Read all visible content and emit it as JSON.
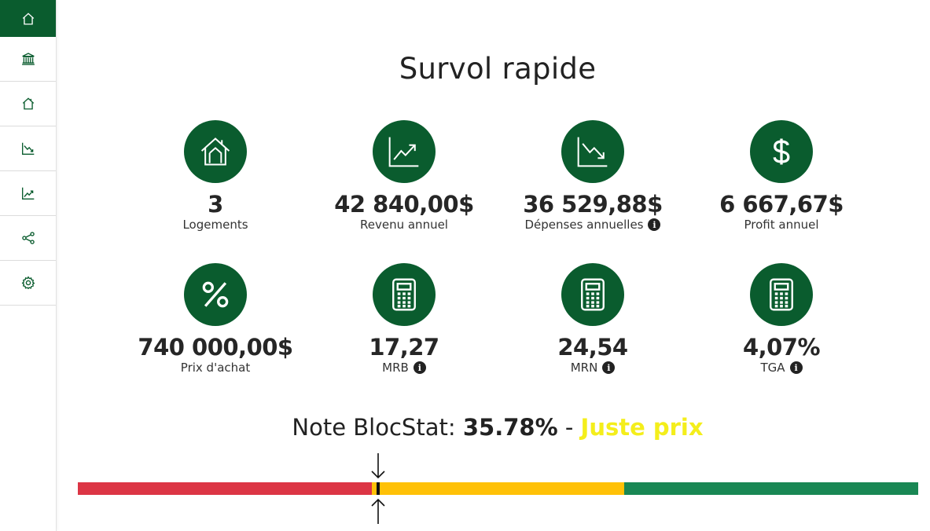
{
  "sidebar": {
    "items": [
      {
        "name": "home",
        "icon": "house-icon",
        "active": true
      },
      {
        "name": "bank",
        "icon": "bank-icon",
        "active": false
      },
      {
        "name": "properties",
        "icon": "house-outline-icon",
        "active": false
      },
      {
        "name": "expenses",
        "icon": "graph-down-icon",
        "active": false
      },
      {
        "name": "revenue",
        "icon": "graph-up-icon",
        "active": false
      },
      {
        "name": "share",
        "icon": "share-icon",
        "active": false
      },
      {
        "name": "settings",
        "icon": "gear-icon",
        "active": false
      }
    ]
  },
  "page": {
    "title": "Survol rapide"
  },
  "stats": [
    {
      "value": "3",
      "label": "Logements",
      "icon": "house-icon",
      "info": false
    },
    {
      "value": "42 840,00$",
      "label": "Revenu annuel",
      "icon": "graph-up-icon",
      "info": false
    },
    {
      "value": "36 529,88$",
      "label": "Dépenses annuelles",
      "icon": "graph-down-icon",
      "info": true
    },
    {
      "value": "6 667,67$",
      "label": "Profit annuel",
      "icon": "dollar-icon",
      "info": false
    },
    {
      "value": "740 000,00$",
      "label": "Prix d'achat",
      "icon": "percent-icon",
      "info": false
    },
    {
      "value": "17,27",
      "label": "MRB",
      "icon": "calculator-icon",
      "info": true
    },
    {
      "value": "24,54",
      "label": "MRN",
      "icon": "calculator-icon",
      "info": true
    },
    {
      "value": "4,07%",
      "label": "TGA",
      "icon": "calculator-icon",
      "info": true
    }
  ],
  "note": {
    "prefix": "Note BlocStat:",
    "score": "35.78%",
    "separator": "-",
    "verdict": "Juste prix",
    "score_value": 0.3578
  },
  "colors": {
    "brand_green": "#0a5c2e",
    "bar_red": "#dc3545",
    "bar_yellow": "#ffc107",
    "bar_green": "#198754",
    "verdict": "#f4ee1b"
  }
}
